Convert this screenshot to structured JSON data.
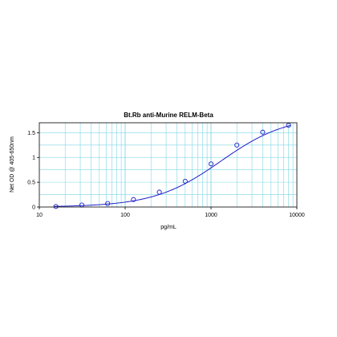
{
  "chart_data": {
    "type": "scatter",
    "title": "Bt.Rb anti-Murine RELM-Beta",
    "xlabel": "pg/mL",
    "ylabel": "Net OD @ 405-650nm",
    "xscale": "log",
    "xlim": [
      10,
      10000
    ],
    "ylim": [
      0,
      1.7
    ],
    "xticks": [
      10,
      100,
      1000,
      10000
    ],
    "xtick_labels": [
      "10",
      "100",
      "1000",
      "10000"
    ],
    "yticks": [
      0,
      0.5,
      1,
      1.5
    ],
    "ytick_labels": [
      "0",
      "0.5",
      "1",
      "1.5"
    ],
    "grid": true,
    "legend": "none",
    "series": [
      {
        "marker": "open-circle",
        "x": [
          15.6,
          31.25,
          62.5,
          125,
          250,
          500,
          1000,
          2000,
          4000,
          8000
        ],
        "y": [
          0.01,
          0.04,
          0.07,
          0.15,
          0.3,
          0.52,
          0.87,
          1.25,
          1.51,
          1.65
        ]
      }
    ],
    "fit_curve": {
      "type": "4PL",
      "bottom": 0.0,
      "top": 1.85,
      "ec50": 1300,
      "hill": 1.12
    },
    "colors": {
      "data": "#1f1fc8",
      "grid": "#7fd6e6",
      "axis": "#000000"
    }
  }
}
